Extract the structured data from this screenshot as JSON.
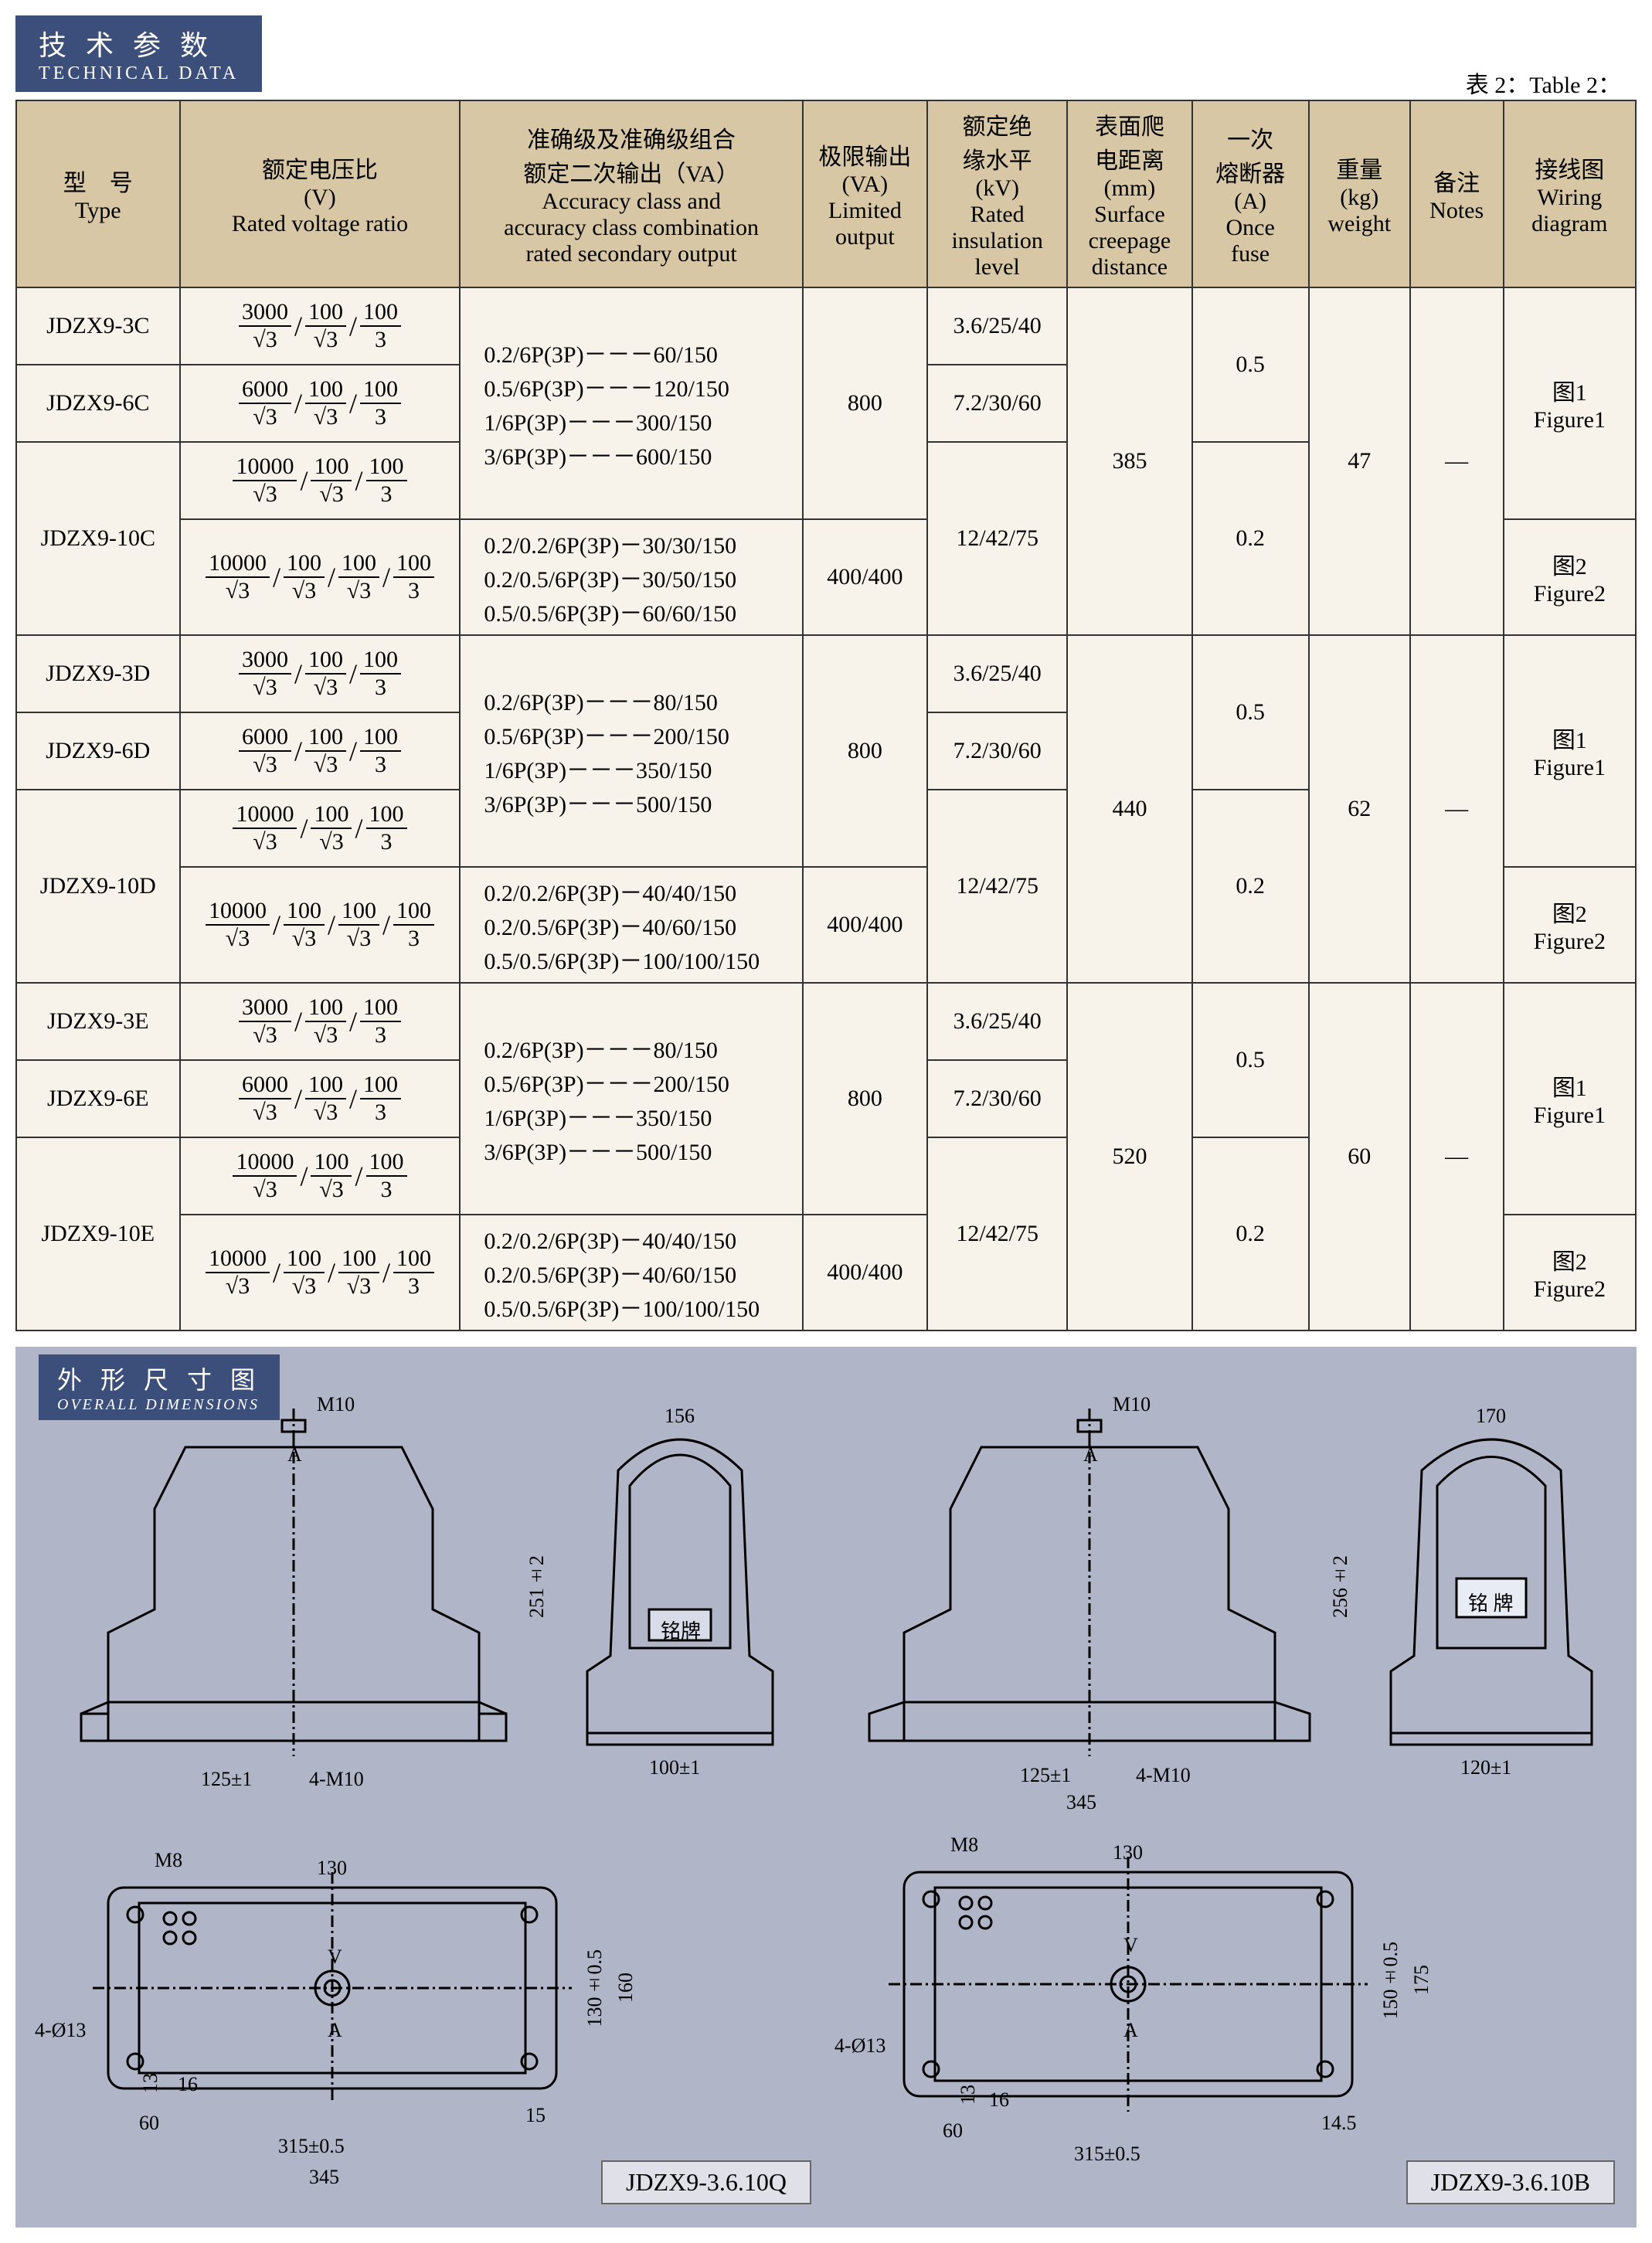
{
  "header": {
    "zh": "技 术 参 数",
    "en": "TECHNICAL DATA"
  },
  "tableCaption": "表 2：Table 2：",
  "columns": {
    "type": {
      "zh": "型　号",
      "en": "Type"
    },
    "ratio": {
      "zh": "额定电压比",
      "unit": "(V)",
      "en": "Rated voltage ratio"
    },
    "accuracy": {
      "zh1": "准确级及准确级组合",
      "zh2": "额定二次输出（VA）",
      "en1": "Accuracy class and",
      "en2": "accuracy class combination",
      "en3": "rated secondary output"
    },
    "limited": {
      "zh": "极限输出",
      "unit": "(VA)",
      "en1": "Limited",
      "en2": "output"
    },
    "insul": {
      "zh1": "额定绝",
      "zh2": "缘水平",
      "unit": "(kV)",
      "en1": "Rated",
      "en2": "insulation",
      "en3": "level"
    },
    "creep": {
      "zh1": "表面爬",
      "zh2": "电距离",
      "unit": "(mm)",
      "en1": "Surface",
      "en2": "creepage",
      "en3": "distance"
    },
    "fuse": {
      "zh1": "一次",
      "zh2": "熔断器",
      "unit": "(A)",
      "en1": "Once",
      "en2": "fuse"
    },
    "weight": {
      "zh": "重量",
      "unit": "(kg)",
      "en": "weight"
    },
    "notes": {
      "zh": "备注",
      "en": "Notes"
    },
    "wiring": {
      "zh": "接线图",
      "en1": "Wiring",
      "en2": "diagram"
    }
  },
  "ratios": {
    "r3000": [
      [
        "3000",
        "√3"
      ],
      [
        "100",
        "√3"
      ],
      [
        "100",
        "3"
      ]
    ],
    "r6000": [
      [
        "6000",
        "√3"
      ],
      [
        "100",
        "√3"
      ],
      [
        "100",
        "3"
      ]
    ],
    "r10000_3": [
      [
        "10000",
        "√3"
      ],
      [
        "100",
        "√3"
      ],
      [
        "100",
        "3"
      ]
    ],
    "r10000_4": [
      [
        "10000",
        "√3"
      ],
      [
        "100",
        "√3"
      ],
      [
        "100",
        "√3"
      ],
      [
        "100",
        "3"
      ]
    ]
  },
  "accuracy_sets": {
    "setC1": [
      "0.2/6P(3P)－－－60/150",
      "0.5/6P(3P)－－－120/150",
      "1/6P(3P)－－－300/150",
      "3/6P(3P)－－－600/150"
    ],
    "setC2": [
      "0.2/0.2/6P(3P)－30/30/150",
      "0.2/0.5/6P(3P)－30/50/150",
      "0.5/0.5/6P(3P)－60/60/150"
    ],
    "setD1": [
      "0.2/6P(3P)－－－80/150",
      "0.5/6P(3P)－－－200/150",
      "1/6P(3P)－－－350/150",
      "3/6P(3P)－－－500/150"
    ],
    "setD2": [
      "0.2/0.2/6P(3P)－40/40/150",
      "0.2/0.5/6P(3P)－40/60/150",
      "0.5/0.5/6P(3P)－100/100/150"
    ]
  },
  "groups": [
    {
      "rows": [
        {
          "type": "JDZX9-3C",
          "ratio": "r3000",
          "insul": "3.6/25/40"
        },
        {
          "type": "JDZX9-6C",
          "ratio": "r6000",
          "insul": "7.2/30/60"
        },
        {
          "type": "JDZX9-10C",
          "ratio2": [
            "r10000_3",
            "r10000_4"
          ],
          "insul": "12/42/75"
        }
      ],
      "acc1": "setC1",
      "acc2": "setC2",
      "limited1": "800",
      "limited2": "400/400",
      "creep": "385",
      "fuse1": "0.5",
      "fuse2": "0.2",
      "weight": "47",
      "notes": "—",
      "wiring1": {
        "zh": "图1",
        "en": "Figure1"
      },
      "wiring2": {
        "zh": "图2",
        "en": "Figure2"
      }
    },
    {
      "rows": [
        {
          "type": "JDZX9-3D",
          "ratio": "r3000",
          "insul": "3.6/25/40"
        },
        {
          "type": "JDZX9-6D",
          "ratio": "r6000",
          "insul": "7.2/30/60"
        },
        {
          "type": "JDZX9-10D",
          "ratio2": [
            "r10000_3",
            "r10000_4"
          ],
          "insul": "12/42/75"
        }
      ],
      "acc1": "setD1",
      "acc2": "setD2",
      "limited1": "800",
      "limited2": "400/400",
      "creep": "440",
      "fuse1": "0.5",
      "fuse2": "0.2",
      "weight": "62",
      "notes": "—",
      "wiring1": {
        "zh": "图1",
        "en": "Figure1"
      },
      "wiring2": {
        "zh": "图2",
        "en": "Figure2"
      }
    },
    {
      "rows": [
        {
          "type": "JDZX9-3E",
          "ratio": "r3000",
          "insul": "3.6/25/40"
        },
        {
          "type": "JDZX9-6E",
          "ratio": "r6000",
          "insul": "7.2/30/60"
        },
        {
          "type": "JDZX9-10E",
          "ratio2": [
            "r10000_3",
            "r10000_4"
          ],
          "insul": "12/42/75"
        }
      ],
      "acc1": "setD1",
      "acc2": "setD2",
      "limited1": "800",
      "limited2": "400/400",
      "creep": "520",
      "fuse1": "0.5",
      "fuse2": "0.2",
      "weight": "60",
      "notes": "—",
      "wiring1": {
        "zh": "图1",
        "en": "Figure1"
      },
      "wiring2": {
        "zh": "图2",
        "en": "Figure2"
      }
    }
  ],
  "dimensions_header": {
    "zh": "外 形 尺 寸 图",
    "en": "OVERALL DIMENSIONS"
  },
  "drawings": {
    "left": {
      "label": "JDZX9-3.6.10Q",
      "labels": {
        "m10": "M10",
        "a": "A",
        "v": "V",
        "m8": "M8",
        "mount": "4-M10",
        "hole": "4-Ø13",
        "plate": "铭牌"
      },
      "dims": {
        "w_top": "156",
        "h": "251±2",
        "base": "125±1",
        "side_w": "100±1",
        "plan_w": "130",
        "plan_h1": "130±0.5",
        "plan_h2": "160",
        "bl": "60",
        "br": "15",
        "inner": "16",
        "lh": "13",
        "total_w": "315±0.5",
        "outer_w": "345"
      }
    },
    "right": {
      "label": "JDZX9-3.6.10B",
      "labels": {
        "m10": "M10",
        "a": "A",
        "v": "V",
        "m8": "M8",
        "mount": "4-M10",
        "hole": "4-Ø13",
        "plate": "铭 牌"
      },
      "dims": {
        "w_top": "170",
        "h": "256±2",
        "base": "125±1",
        "side_w": "120±1",
        "plan_w": "130",
        "plan_h1": "150±0.5",
        "plan_h2": "175",
        "bl": "60",
        "br": "14.5",
        "inner": "16",
        "lh": "13",
        "total_w": "315±0.5",
        "outer_w": "345"
      }
    }
  },
  "colors": {
    "header_bg": "#3c4f7a",
    "header_fg": "#ffffff",
    "th_bg": "#d7c7a4",
    "td_bg": "#f7f3eb",
    "border": "#333333",
    "dim_bg": "#b0b6c8",
    "label_bg": "#e0e0e8"
  }
}
